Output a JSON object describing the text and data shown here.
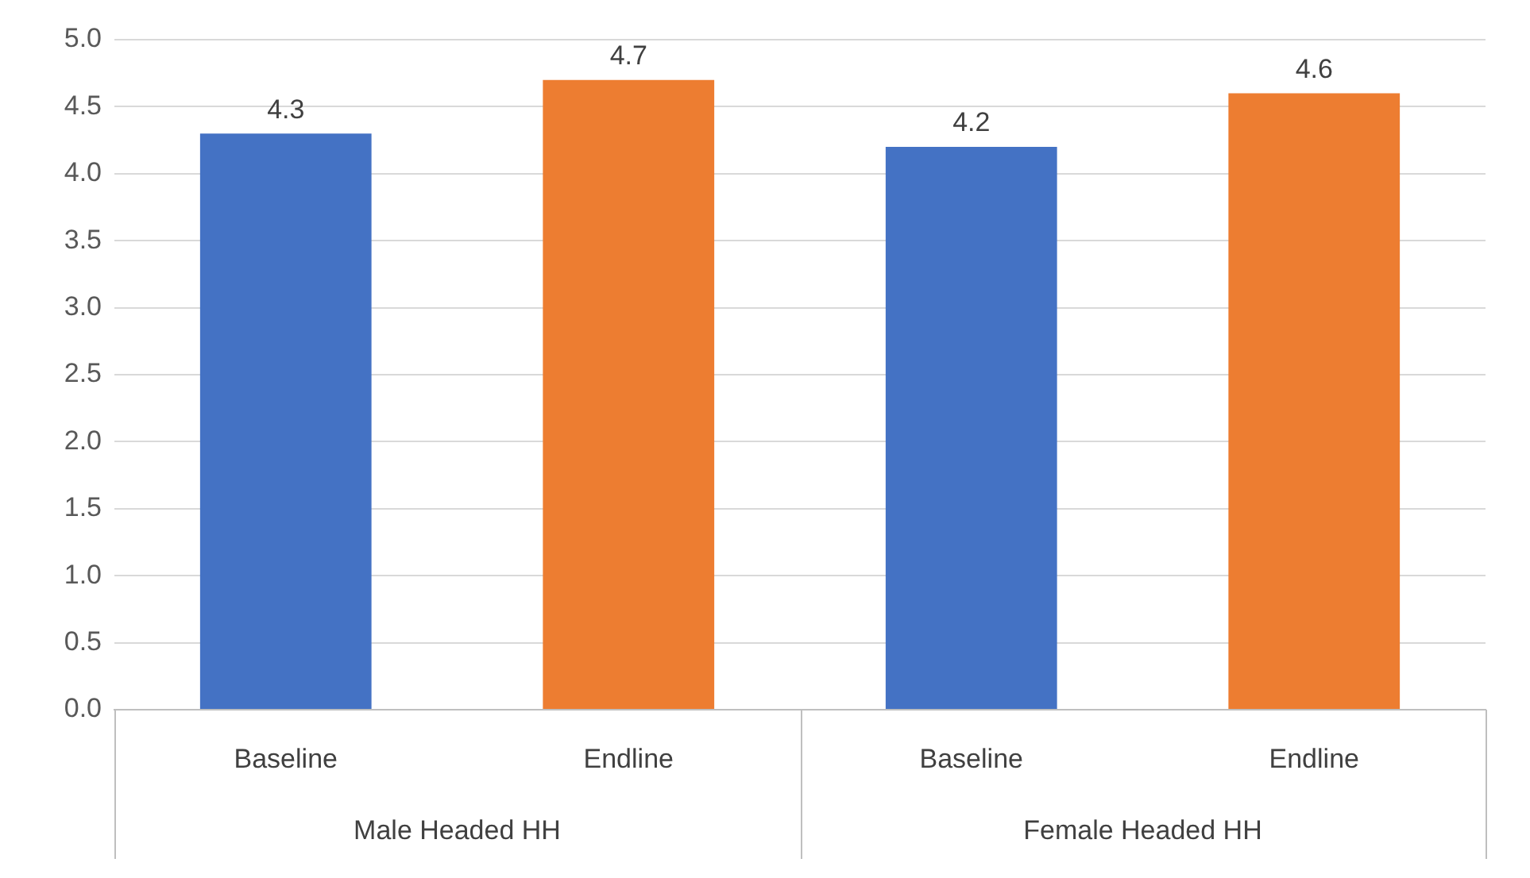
{
  "chart_data": {
    "type": "bar",
    "categories": [
      "Male Headed HH",
      "Female Headed HH"
    ],
    "series": [
      {
        "name": "Baseline",
        "color": "#4472c4",
        "values": [
          4.3,
          4.2
        ]
      },
      {
        "name": "Endline",
        "color": "#ed7d31",
        "values": [
          4.7,
          4.6
        ]
      }
    ],
    "ylim": [
      0,
      5
    ],
    "yticks": [
      {
        "value": 0,
        "label": "0.0"
      },
      {
        "value": 0.5,
        "label": "0.5"
      },
      {
        "value": 1,
        "label": "1.0"
      },
      {
        "value": 1.5,
        "label": "1.5"
      },
      {
        "value": 2,
        "label": "2.0"
      },
      {
        "value": 2.5,
        "label": "2.5"
      },
      {
        "value": 3,
        "label": "3.0"
      },
      {
        "value": 3.5,
        "label": "3.5"
      },
      {
        "value": 4,
        "label": "4.0"
      },
      {
        "value": 4.5,
        "label": "4.5"
      },
      {
        "value": 5,
        "label": "5.0"
      }
    ],
    "grid": "y",
    "data_labels": true,
    "legend": false
  }
}
